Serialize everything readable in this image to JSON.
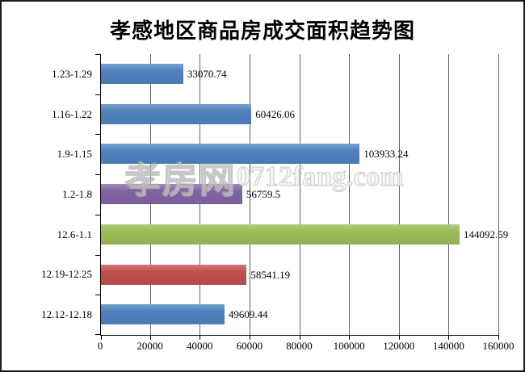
{
  "title": "孝感地区商品房成交面积趋势图",
  "watermark": {
    "text_cn": "孝房网",
    "text_en": "0712fang.com"
  },
  "chart_data": {
    "type": "bar",
    "orientation": "horizontal",
    "title": "孝感地区商品房成交面积趋势图",
    "categories": [
      "1.23-1.29",
      "1.16-1.22",
      "1.9-1.15",
      "1.2-1.8",
      "12.6-1.1",
      "12.19-12.25",
      "12.12-12.18"
    ],
    "values": [
      33070.74,
      60426.06,
      103933.24,
      56759.5,
      144092.59,
      58541.19,
      49609.44
    ],
    "value_labels": [
      "33070.74",
      "60426.06",
      "103933.24",
      "56759.5",
      "144092.59",
      "58541.19",
      "49609.44"
    ],
    "bar_colors": [
      "#4f81bd",
      "#4f81bd",
      "#4f81bd",
      "#8064a2",
      "#9bbb59",
      "#c0504d",
      "#4f81bd"
    ],
    "xlim": [
      0,
      160000
    ],
    "x_tick_values": [
      0,
      20000,
      40000,
      60000,
      80000,
      100000,
      120000,
      140000,
      160000
    ],
    "x_tick_labels": [
      "0",
      "20000",
      "40000",
      "60000",
      "80000",
      "100000",
      "120000",
      "140000",
      "160000"
    ],
    "grid": true,
    "legend": "none",
    "colors": {
      "axis": "#000000",
      "gridline": "#616161",
      "background": "#ffffff",
      "frame_border": "#1a1a1a",
      "text": "#000000"
    }
  }
}
